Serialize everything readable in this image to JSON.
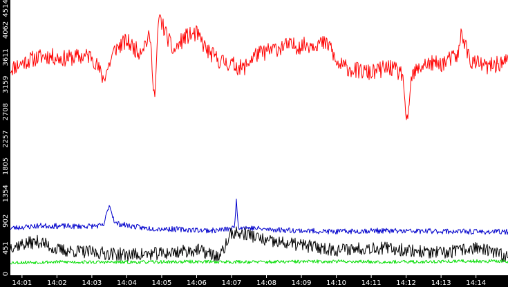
{
  "chart_data": {
    "type": "line",
    "title": "",
    "xlabel": "",
    "ylabel": "",
    "grid": false,
    "legend": "none",
    "ylim": [
      0,
      4514
    ],
    "xlim": [
      "14:00:40",
      "14:14:55"
    ],
    "y_ticks": [
      0,
      451,
      902,
      1354,
      1805,
      2257,
      2708,
      3159,
      3611,
      4062,
      4514
    ],
    "x_ticks": [
      "14:01",
      "14:02",
      "14:03",
      "14:04",
      "14:05",
      "14:06",
      "14:07",
      "14:08",
      "14:09",
      "14:10",
      "14:11",
      "14:12",
      "14:13",
      "14:14"
    ],
    "series": [
      {
        "color": "#ff0000",
        "description": "upper band, roughly 3000-4500",
        "keypoints": [
          [
            "14:00:40",
            3420
          ],
          [
            "14:01:10",
            3560
          ],
          [
            "14:01:40",
            3640
          ],
          [
            "14:02:10",
            3590
          ],
          [
            "14:02:40",
            3620
          ],
          [
            "14:03:00",
            3640
          ],
          [
            "14:03:20",
            3250
          ],
          [
            "14:03:40",
            3750
          ],
          [
            "14:04:00",
            3880
          ],
          [
            "14:04:20",
            3700
          ],
          [
            "14:04:40",
            3950
          ],
          [
            "14:04:48",
            2900
          ],
          [
            "14:04:55",
            4300
          ],
          [
            "14:05:20",
            3700
          ],
          [
            "14:05:40",
            3950
          ],
          [
            "14:06:00",
            4000
          ],
          [
            "14:06:20",
            3700
          ],
          [
            "14:06:40",
            3550
          ],
          [
            "14:07:00",
            3500
          ],
          [
            "14:07:20",
            3420
          ],
          [
            "14:07:40",
            3650
          ],
          [
            "14:08:00",
            3700
          ],
          [
            "14:08:30",
            3800
          ],
          [
            "14:09:00",
            3800
          ],
          [
            "14:09:30",
            3850
          ],
          [
            "14:09:50",
            3800
          ],
          [
            "14:10:00",
            3500
          ],
          [
            "14:10:30",
            3400
          ],
          [
            "14:11:00",
            3350
          ],
          [
            "14:11:30",
            3450
          ],
          [
            "14:11:55",
            3320
          ],
          [
            "14:12:00",
            2400
          ],
          [
            "14:12:10",
            3300
          ],
          [
            "14:12:30",
            3500
          ],
          [
            "14:13:00",
            3500
          ],
          [
            "14:13:30",
            3650
          ],
          [
            "14:13:35",
            4050
          ],
          [
            "14:13:50",
            3550
          ],
          [
            "14:14:20",
            3450
          ],
          [
            "14:14:55",
            3550
          ]
        ],
        "noise": 140,
        "seed": 11
      },
      {
        "color": "#0000cc",
        "description": "blue series, roughly 650-1250",
        "keypoints": [
          [
            "14:00:40",
            780
          ],
          [
            "14:01:30",
            820
          ],
          [
            "14:02:30",
            810
          ],
          [
            "14:03:20",
            820
          ],
          [
            "14:03:30",
            1170
          ],
          [
            "14:03:40",
            860
          ],
          [
            "14:04:30",
            780
          ],
          [
            "14:05:30",
            760
          ],
          [
            "14:06:30",
            740
          ],
          [
            "14:07:05",
            780
          ],
          [
            "14:07:08",
            1260
          ],
          [
            "14:07:12",
            800
          ],
          [
            "14:08:00",
            760
          ],
          [
            "14:09:00",
            740
          ],
          [
            "14:10:00",
            720
          ],
          [
            "14:11:00",
            740
          ],
          [
            "14:12:00",
            730
          ],
          [
            "14:13:00",
            730
          ],
          [
            "14:14:00",
            720
          ],
          [
            "14:14:55",
            720
          ]
        ],
        "noise": 45,
        "seed": 23
      },
      {
        "color": "#000000",
        "description": "black series, roughly 200-900",
        "keypoints": [
          [
            "14:00:40",
            480
          ],
          [
            "14:01:30",
            560
          ],
          [
            "14:02:00",
            420
          ],
          [
            "14:03:00",
            380
          ],
          [
            "14:04:00",
            340
          ],
          [
            "14:05:00",
            360
          ],
          [
            "14:06:00",
            420
          ],
          [
            "14:06:40",
            300
          ],
          [
            "14:07:00",
            700
          ],
          [
            "14:07:30",
            680
          ],
          [
            "14:08:00",
            560
          ],
          [
            "14:09:00",
            500
          ],
          [
            "14:10:00",
            420
          ],
          [
            "14:11:00",
            460
          ],
          [
            "14:12:00",
            420
          ],
          [
            "14:13:00",
            360
          ],
          [
            "14:14:00",
            460
          ],
          [
            "14:14:55",
            300
          ]
        ],
        "noise": 110,
        "seed": 37
      },
      {
        "color": "#00dd00",
        "description": "green series, roughly 150-300",
        "keypoints": [
          [
            "14:00:40",
            210
          ],
          [
            "14:02:00",
            220
          ],
          [
            "14:04:00",
            215
          ],
          [
            "14:06:00",
            225
          ],
          [
            "14:08:00",
            220
          ],
          [
            "14:10:00",
            230
          ],
          [
            "14:12:00",
            220
          ],
          [
            "14:14:00",
            235
          ],
          [
            "14:14:55",
            230
          ]
        ],
        "noise": 28,
        "seed": 53
      }
    ]
  },
  "colors": {
    "background": "#ffffff",
    "axis_band": "#000000",
    "axis_text": "#ffffff"
  }
}
